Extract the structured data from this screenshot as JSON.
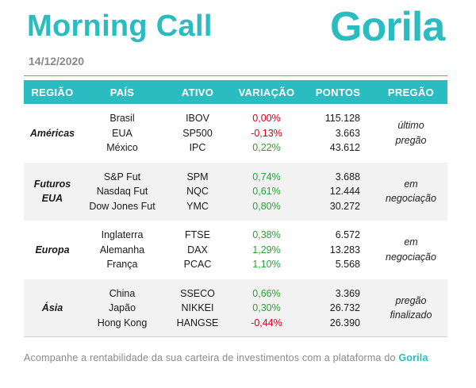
{
  "header": {
    "title": "Morning Call",
    "logo": "Gorila",
    "date": "14/12/2020"
  },
  "table": {
    "columns": [
      "REGIÃO",
      "PAÍS",
      "ATIVO",
      "VARIAÇÃO",
      "PONTOS",
      "PREGÃO"
    ],
    "groups": [
      {
        "region": [
          "Américas"
        ],
        "status": [
          "último",
          "pregão"
        ],
        "rows": [
          {
            "country": "Brasil",
            "asset": "IBOV",
            "change": "0,00%",
            "points": "115.128"
          },
          {
            "country": "EUA",
            "asset": "SP500",
            "change": "-0,13%",
            "points": "3.663"
          },
          {
            "country": "México",
            "asset": "IPC",
            "change": "0,22%",
            "points": "43.612"
          }
        ]
      },
      {
        "region": [
          "Futuros",
          "EUA"
        ],
        "status": [
          "em",
          "negociação"
        ],
        "rows": [
          {
            "country": "S&P Fut",
            "asset": "SPM",
            "change": "0,74%",
            "points": "3.688"
          },
          {
            "country": "Nasdaq Fut",
            "asset": "NQC",
            "change": "0,61%",
            "points": "12.444"
          },
          {
            "country": "Dow Jones Fut",
            "asset": "YMC",
            "change": "0,80%",
            "points": "30.272"
          }
        ]
      },
      {
        "region": [
          "Europa"
        ],
        "status": [
          "em",
          "negociação"
        ],
        "rows": [
          {
            "country": "Inglaterra",
            "asset": "FTSE",
            "change": "0,38%",
            "points": "6.572"
          },
          {
            "country": "Alemanha",
            "asset": "DAX",
            "change": "1,29%",
            "points": "13.283"
          },
          {
            "country": "França",
            "asset": "PCAC",
            "change": "1,10%",
            "points": "5.568"
          }
        ]
      },
      {
        "region": [
          "Ásia"
        ],
        "status": [
          "pregão",
          "finalizado"
        ],
        "rows": [
          {
            "country": "China",
            "asset": "SSECO",
            "change": "0,66%",
            "points": "3.369"
          },
          {
            "country": "Japão",
            "asset": "NIKKEI",
            "change": "0,30%",
            "points": "26.732"
          },
          {
            "country": "Hong Kong",
            "asset": "HANGSE",
            "change": "-0,44%",
            "points": "26.390"
          }
        ]
      }
    ]
  },
  "footer": {
    "text": "Acompanhe a rentabilidade da sua carteira de investimentos com a plataforma do ",
    "brand": "Gorila"
  },
  "colors": {
    "accent": "#2bbcc1",
    "positive": "#2e9f3a",
    "negative": "#d0021b"
  }
}
